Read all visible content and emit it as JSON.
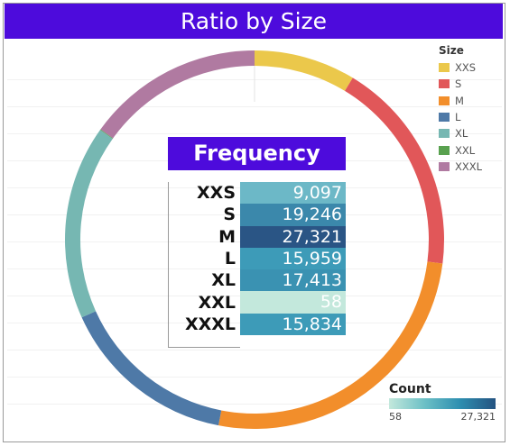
{
  "title": "Ratio by Size",
  "chart_data": {
    "type": "pie",
    "categories": [
      "XXS",
      "S",
      "M",
      "L",
      "XL",
      "XXL",
      "XXXL"
    ],
    "values": [
      9097,
      19246,
      27321,
      15959,
      17413,
      58,
      15834
    ],
    "legend_title": "Size",
    "legend_placement": "top-right",
    "colors": [
      "#ebc84b",
      "#e15759",
      "#f28e2b",
      "#4e79a7",
      "#76b7b2",
      "#59a14f",
      "#b07aa1"
    ]
  },
  "frequency": {
    "title": "Frequency",
    "rows": [
      {
        "size": "XXS",
        "value": "9,097",
        "count": 9097,
        "color": "#6cb8c7"
      },
      {
        "size": "S",
        "value": "19,246",
        "count": 19246,
        "color": "#3b88ab"
      },
      {
        "size": "M",
        "value": "27,321",
        "count": 27321,
        "color": "#2a5585"
      },
      {
        "size": "L",
        "value": "15,959",
        "count": 15959,
        "color": "#3d9bb8"
      },
      {
        "size": "XL",
        "value": "17,413",
        "count": 17413,
        "color": "#3a92b2"
      },
      {
        "size": "XXL",
        "value": "58",
        "count": 58,
        "color": "#c3e8dc"
      },
      {
        "size": "XXXL",
        "value": "15,834",
        "count": 15834,
        "color": "#3d9bb8"
      }
    ]
  },
  "count_legend": {
    "title": "Count",
    "min": "58",
    "max": "27,321"
  }
}
